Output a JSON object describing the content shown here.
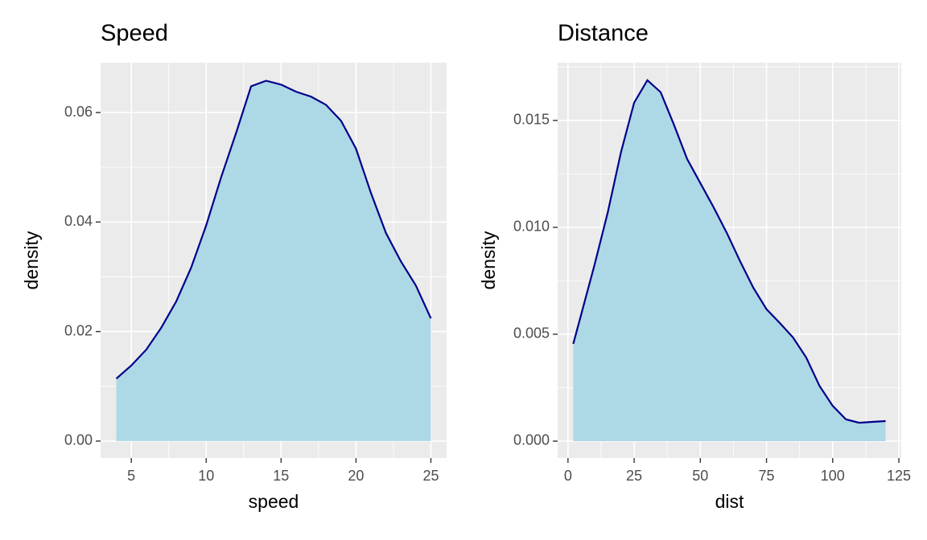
{
  "chart_data": [
    {
      "type": "density",
      "title": "Speed",
      "x_label": "speed",
      "y_label": "density",
      "x": [
        4,
        5,
        6,
        7,
        8,
        9,
        10,
        11,
        12,
        13,
        14,
        15,
        16,
        17,
        18,
        19,
        20,
        21,
        22,
        23,
        24,
        25
      ],
      "values": [
        0.0114,
        0.0138,
        0.0167,
        0.0207,
        0.0255,
        0.0317,
        0.0394,
        0.0482,
        0.0563,
        0.0648,
        0.0658,
        0.0651,
        0.0638,
        0.0629,
        0.0614,
        0.0585,
        0.0534,
        0.0453,
        0.038,
        0.0328,
        0.0284,
        0.0224
      ],
      "fill": "#add8e6",
      "color": "#00008b",
      "xlim": [
        2.95,
        26.05
      ],
      "xticks": [
        5,
        10,
        15,
        20,
        25
      ],
      "ylim": [
        -0.0031,
        0.0691
      ],
      "yticks": [
        {
          "value": 0,
          "label": "0.00"
        },
        0.02,
        0.04,
        0.06
      ],
      "grid": true
    },
    {
      "type": "density",
      "title": "Distance",
      "x_label": "dist",
      "y_label": "density",
      "x": [
        2,
        10,
        15,
        20,
        25,
        30,
        35,
        40,
        45,
        50,
        55,
        60,
        65,
        70,
        75,
        80,
        85,
        90,
        95,
        100,
        105,
        110,
        115,
        120
      ],
      "values": [
        0.00455,
        0.00823,
        0.01068,
        0.0135,
        0.01583,
        0.01688,
        0.01632,
        0.01481,
        0.0132,
        0.01207,
        0.01094,
        0.00974,
        0.00842,
        0.00718,
        0.00617,
        0.00553,
        0.00485,
        0.00391,
        0.00259,
        0.00165,
        0.00102,
        0.00086,
        0.0009,
        0.00094
      ],
      "fill": "#add8e6",
      "color": "#00008b",
      "xlim": [
        -3.9,
        125.9
      ],
      "xticks": [
        0,
        25,
        50,
        75,
        100,
        125
      ],
      "ylim": [
        -0.00079,
        0.0177
      ],
      "yticks": [
        {
          "value": 0,
          "label": "0.000"
        },
        0.005,
        {
          "value": 0.01,
          "label": "0.010"
        },
        0.015
      ],
      "grid": true
    }
  ]
}
